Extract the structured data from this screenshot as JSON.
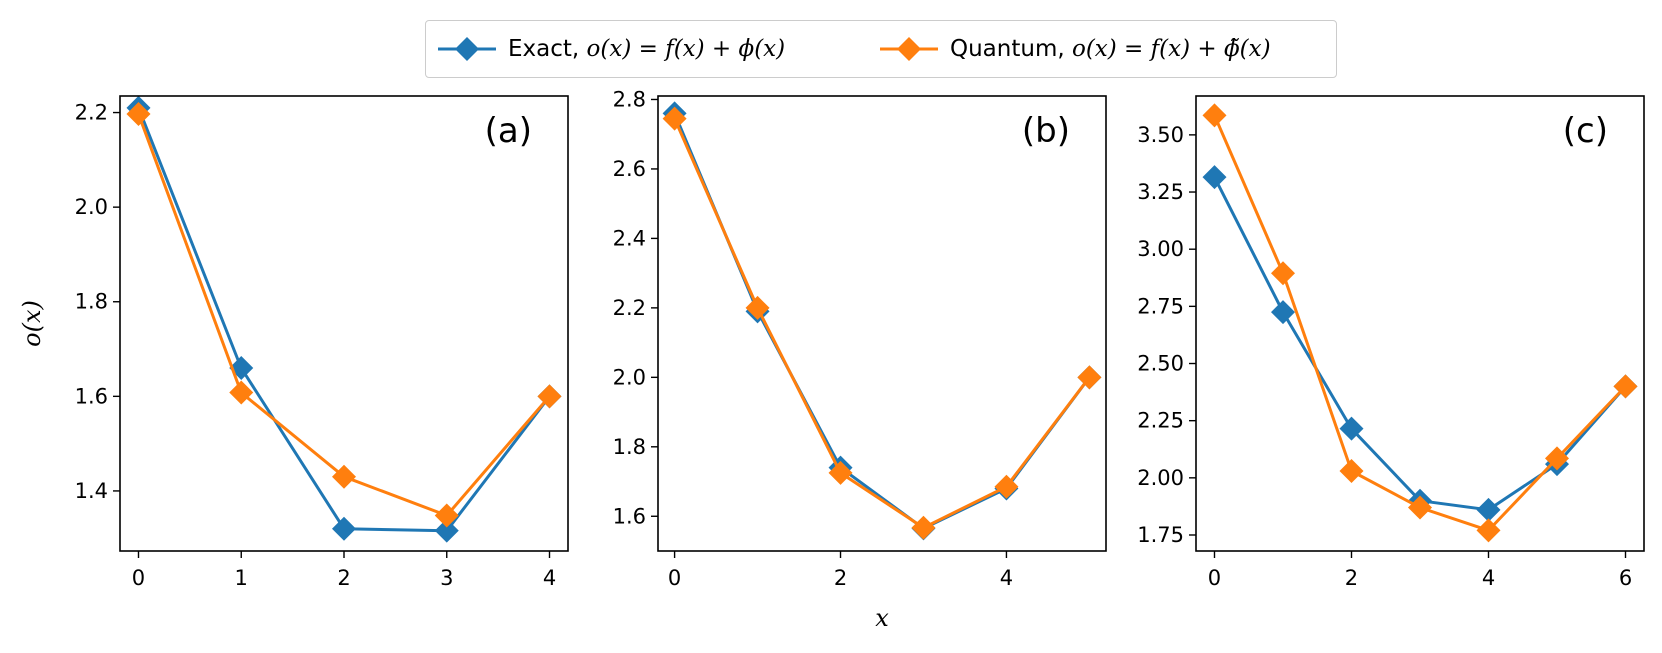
{
  "legend": {
    "exact_label_prefix": "Exact, ",
    "exact_formula": "o(x) = f(x) + ϕ(x)",
    "quantum_label_prefix": "Quantum, ",
    "quantum_formula": "o(x) = f(x) + ϕ̃(x)"
  },
  "colors": {
    "exact": "#1f77b4",
    "quantum": "#ff7f0e"
  },
  "chart_data": [
    {
      "type": "line",
      "panel_label": "(a)",
      "ylabel": "o(x)",
      "xlabel": "",
      "x": [
        0,
        1,
        2,
        3,
        4
      ],
      "xticks": [
        "0",
        "1",
        "2",
        "3",
        "4"
      ],
      "xlim": [
        -0.18,
        4.18
      ],
      "ylim": [
        1.273,
        2.235
      ],
      "yticks": [
        "1.4",
        "1.6",
        "1.8",
        "2.0",
        "2.2"
      ],
      "ytick_values": [
        1.4,
        1.6,
        1.8,
        2.0,
        2.2
      ],
      "series": [
        {
          "name": "Exact, o(x) = f(x) + ϕ(x)",
          "values": [
            2.21,
            1.66,
            1.32,
            1.316,
            1.6
          ]
        },
        {
          "name": "Quantum, o(x) = f(x) + ϕ̃(x)",
          "values": [
            2.197,
            1.608,
            1.43,
            1.348,
            1.6
          ]
        }
      ]
    },
    {
      "type": "line",
      "panel_label": "(b)",
      "ylabel": "",
      "xlabel": "x",
      "x": [
        0,
        1,
        2,
        3,
        4,
        5
      ],
      "xticks": [
        "0",
        "2",
        "4"
      ],
      "xtick_values": [
        0,
        2,
        4
      ],
      "xlim": [
        -0.2,
        5.2
      ],
      "ylim": [
        1.5,
        2.81
      ],
      "yticks": [
        "1.6",
        "1.8",
        "2.0",
        "2.2",
        "2.4",
        "2.6",
        "2.8"
      ],
      "ytick_values": [
        1.6,
        1.8,
        2.0,
        2.2,
        2.4,
        2.6,
        2.8
      ],
      "series": [
        {
          "name": "Exact, o(x) = f(x) + ϕ(x)",
          "values": [
            2.76,
            2.19,
            1.74,
            1.565,
            1.68,
            2.0
          ]
        },
        {
          "name": "Quantum, o(x) = f(x) + ϕ̃(x)",
          "values": [
            2.745,
            2.2,
            1.725,
            1.567,
            1.685,
            2.0
          ]
        }
      ]
    },
    {
      "type": "line",
      "panel_label": "(c)",
      "ylabel": "",
      "xlabel": "",
      "x": [
        0,
        1,
        2,
        3,
        4,
        5,
        6
      ],
      "xticks": [
        "0",
        "2",
        "4",
        "6"
      ],
      "xtick_values": [
        0,
        2,
        4,
        6
      ],
      "xlim": [
        -0.27,
        6.27
      ],
      "ylim": [
        1.68,
        3.67
      ],
      "yticks": [
        "1.75",
        "2.00",
        "2.25",
        "2.50",
        "2.75",
        "3.00",
        "3.25",
        "3.50"
      ],
      "ytick_values": [
        1.75,
        2.0,
        2.25,
        2.5,
        2.75,
        3.0,
        3.25,
        3.5
      ],
      "series": [
        {
          "name": "Exact, o(x) = f(x) + ϕ(x)",
          "values": [
            3.315,
            2.725,
            2.215,
            1.9,
            1.86,
            2.06,
            2.4
          ]
        },
        {
          "name": "Quantum, o(x) = f(x) + ϕ̃(x)",
          "values": [
            3.585,
            2.895,
            2.03,
            1.87,
            1.77,
            2.085,
            2.4
          ]
        }
      ]
    }
  ]
}
